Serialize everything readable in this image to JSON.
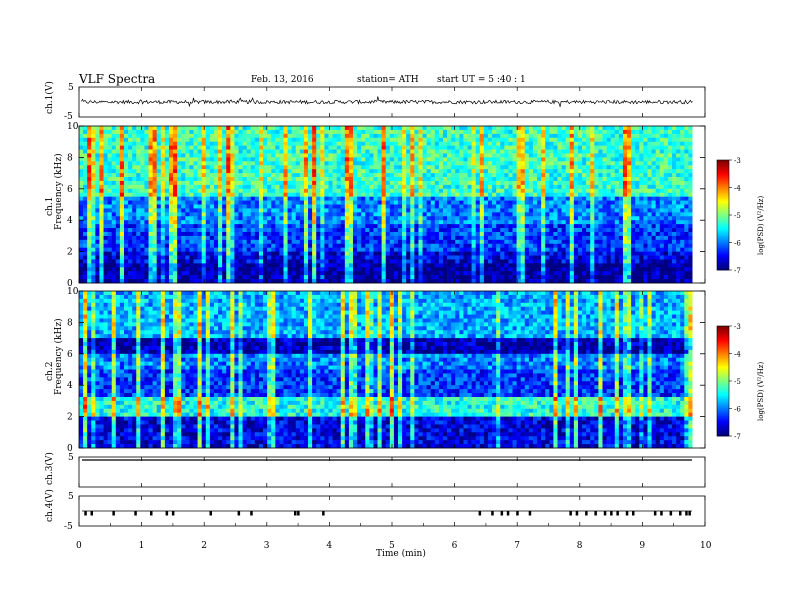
{
  "header": {
    "title": "VLF  Spectra",
    "date": "Feb. 13, 2016",
    "station": "station= ATH",
    "start": "start  UT  =   5  :40 : 1"
  },
  "panel_labels": {
    "ch1_wave": "ch.1(V)",
    "ch1_spec": "ch.1",
    "ch2_spec": "ch.2",
    "freq": "Frequency  (kHz)",
    "ch3_wave": "ch.3(V)",
    "ch4_wave": "ch.4(V)",
    "xlabel": "Time  (min)"
  },
  "colorbar": {
    "label": "log(PSD) (V²/Hz)",
    "ticks": [
      "-3",
      "-4",
      "-5",
      "-6",
      "-7"
    ]
  },
  "chart_data": [
    {
      "type": "line",
      "name": "ch.1 waveform",
      "ylabel": "ch.1(V)",
      "ylim": [
        -5,
        5
      ],
      "yticks": [
        "5",
        "-5"
      ],
      "xlim": [
        0,
        10
      ],
      "data_extent_min": 9.8,
      "baseline": 0,
      "amplitude_typical": 0.8
    },
    {
      "type": "heatmap",
      "name": "ch.1 spectrogram",
      "xlabel": "Time (min)",
      "ylabel": "Frequency (kHz)",
      "xlim": [
        0,
        10
      ],
      "ylim": [
        0,
        10
      ],
      "yticks": [
        "0",
        "2",
        "4",
        "6",
        "8",
        "10"
      ],
      "color_scale": "log(PSD) (V²/Hz)",
      "zlim": [
        -7,
        -3
      ],
      "bands": [
        {
          "from": 0,
          "to": 1.2,
          "log_psd": -6.9
        },
        {
          "from": 1.2,
          "to": 2.0,
          "log_psd": -6.6
        },
        {
          "from": 2.0,
          "to": 3.8,
          "log_psd": -6.3
        },
        {
          "from": 3.8,
          "to": 5.6,
          "log_psd": -6.0
        },
        {
          "from": 5.6,
          "to": 10,
          "log_psd": -5.3
        }
      ]
    },
    {
      "type": "heatmap",
      "name": "ch.2 spectrogram",
      "xlabel": "Time (min)",
      "ylabel": "Frequency (kHz)",
      "xlim": [
        0,
        10
      ],
      "ylim": [
        0,
        10
      ],
      "yticks": [
        "0",
        "2",
        "4",
        "6",
        "8",
        "10"
      ],
      "color_scale": "log(PSD) (V²/Hz)",
      "zlim": [
        -7,
        -3
      ],
      "bands": [
        {
          "from": 0,
          "to": 2.0,
          "log_psd": -6.6
        },
        {
          "from": 2.0,
          "to": 3.2,
          "log_psd": -5.4
        },
        {
          "from": 3.2,
          "to": 5.0,
          "log_psd": -6.3
        },
        {
          "from": 5.0,
          "to": 6.0,
          "log_psd": -6.0
        },
        {
          "from": 6.0,
          "to": 7.0,
          "log_psd": -6.8
        },
        {
          "from": 7.0,
          "to": 10,
          "log_psd": -5.8
        }
      ]
    },
    {
      "type": "line",
      "name": "ch.3 waveform",
      "ylabel": "ch.3(V)",
      "ylim": [
        -5,
        5
      ],
      "yticks": [
        "5"
      ],
      "xlim": [
        0,
        10
      ],
      "baseline": 0
    },
    {
      "type": "line",
      "name": "ch.4 waveform",
      "ylabel": "ch.4(V)",
      "ylim": [
        -5,
        5
      ],
      "yticks": [
        "5",
        "-5"
      ],
      "xlim": [
        0,
        10
      ],
      "baseline": 0,
      "pulse_times_min": [
        0.1,
        0.2,
        0.55,
        0.9,
        1.15,
        1.4,
        1.5,
        2.1,
        2.55,
        2.75,
        3.45,
        3.5,
        3.9,
        6.4,
        6.6,
        6.75,
        6.85,
        7.0,
        7.2,
        7.85,
        7.95,
        8.1,
        8.25,
        8.4,
        8.5,
        8.6,
        8.75,
        8.85,
        9.2,
        9.3,
        9.45,
        9.6,
        9.7,
        9.75
      ],
      "pulse_min": -1.5
    },
    {
      "type": "line",
      "name": "time axis",
      "xlabel": "Time  (min)",
      "xlim": [
        0,
        10
      ],
      "xticks": [
        "0",
        "1",
        "2",
        "3",
        "4",
        "5",
        "6",
        "7",
        "8",
        "9",
        "10"
      ]
    }
  ]
}
